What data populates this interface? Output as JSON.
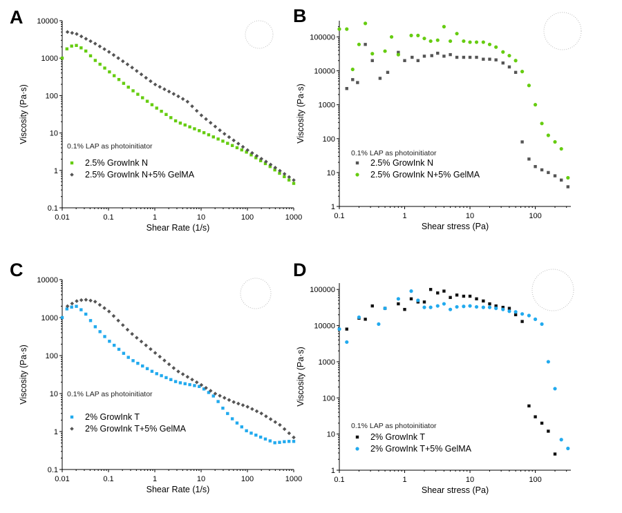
{
  "chart_data": [
    {
      "panel": "A",
      "type": "scatter",
      "xlabel": "Shear Rate (1/s)",
      "ylabel": "Viscosity (Pa·s)",
      "xscale": "log",
      "yscale": "log",
      "xlim": [
        0.01,
        1000
      ],
      "ylim": [
        0.1,
        10000
      ],
      "xticks": [
        "0.01",
        "0.1",
        "1",
        "10",
        "100",
        "1000"
      ],
      "yticks": [
        "0.1",
        "1",
        "10",
        "100",
        "1000",
        "10000"
      ],
      "annotation": "0.1% LAP as photoinitiator",
      "legend_position": "bottom-left",
      "series": [
        {
          "name": "2.5% GrowInk N",
          "color": "#66cc11",
          "marker": "square",
          "anchors": [
            [
              0.01,
              1000
            ],
            [
              0.012,
              1700
            ],
            [
              0.016,
              2100
            ],
            [
              0.02,
              2200
            ],
            [
              0.03,
              1700
            ],
            [
              0.05,
              900
            ],
            [
              0.1,
              450
            ],
            [
              0.3,
              150
            ],
            [
              1,
              50
            ],
            [
              3,
              20
            ],
            [
              10,
              11
            ],
            [
              30,
              6
            ],
            [
              100,
              3
            ],
            [
              300,
              1.3
            ],
            [
              1000,
              0.45
            ]
          ]
        },
        {
          "name": "2.5% GrowInk N+5% GelMA",
          "color": "#555555",
          "marker": "diamond",
          "anchors": [
            [
              0.013,
              5000
            ],
            [
              0.02,
              4500
            ],
            [
              0.05,
              2500
            ],
            [
              0.1,
              1500
            ],
            [
              0.3,
              600
            ],
            [
              1,
              200
            ],
            [
              3,
              100
            ],
            [
              5,
              70
            ],
            [
              10,
              30
            ],
            [
              30,
              10
            ],
            [
              100,
              3.5
            ],
            [
              300,
              1.5
            ],
            [
              1000,
              0.55
            ]
          ]
        }
      ]
    },
    {
      "panel": "B",
      "type": "scatter",
      "xlabel": "Shear stress (Pa)",
      "ylabel": "Viscosity (Pa·s)",
      "xscale": "log",
      "yscale": "log",
      "xlim": [
        0.1,
        350
      ],
      "ylim": [
        1,
        300000
      ],
      "xticks": [
        "0.1",
        "1",
        "10",
        "100"
      ],
      "yticks": [
        "1",
        "10",
        "100",
        "1000",
        "10000",
        "100000"
      ],
      "annotation": "0.1% LAP as photoinitiator",
      "legend_position": "bottom-left",
      "series": [
        {
          "name": "2.5% GrowInk N",
          "color": "#555555",
          "marker": "square",
          "points": [
            [
              0.13,
              3000
            ],
            [
              0.16,
              5500
            ],
            [
              0.19,
              4500
            ],
            [
              0.25,
              60000
            ],
            [
              0.32,
              20000
            ],
            [
              0.42,
              6000
            ],
            [
              0.55,
              9000
            ],
            [
              0.8,
              35000
            ],
            [
              1.0,
              20000
            ],
            [
              1.3,
              25000
            ],
            [
              1.6,
              20000
            ],
            [
              2,
              27000
            ],
            [
              2.6,
              28000
            ],
            [
              3.2,
              33000
            ],
            [
              4,
              27000
            ],
            [
              5,
              30000
            ],
            [
              6.3,
              25000
            ],
            [
              8,
              25000
            ],
            [
              10,
              25000
            ],
            [
              12.6,
              25000
            ],
            [
              16,
              22000
            ],
            [
              20,
              22000
            ],
            [
              25,
              21000
            ],
            [
              32,
              17000
            ],
            [
              40,
              13000
            ],
            [
              50,
              9000
            ],
            [
              63,
              80
            ],
            [
              80,
              25
            ],
            [
              100,
              15
            ],
            [
              126,
              12
            ],
            [
              158,
              10
            ],
            [
              200,
              8
            ],
            [
              250,
              6
            ],
            [
              316,
              3.8
            ]
          ]
        },
        {
          "name": "2.5% GrowInk N+5% GelMA",
          "color": "#66cc11",
          "marker": "circle",
          "points": [
            [
              0.1,
              170000
            ],
            [
              0.13,
              170000
            ],
            [
              0.16,
              11000
            ],
            [
              0.2,
              60000
            ],
            [
              0.25,
              250000
            ],
            [
              0.32,
              32000
            ],
            [
              0.5,
              38000
            ],
            [
              0.63,
              100000
            ],
            [
              0.8,
              30000
            ],
            [
              1.26,
              110000
            ],
            [
              1.6,
              110000
            ],
            [
              2,
              90000
            ],
            [
              2.5,
              75000
            ],
            [
              3.2,
              80000
            ],
            [
              4,
              200000
            ],
            [
              5,
              75000
            ],
            [
              6.3,
              125000
            ],
            [
              8,
              75000
            ],
            [
              10,
              70000
            ],
            [
              12.6,
              70000
            ],
            [
              16,
              70000
            ],
            [
              20,
              60000
            ],
            [
              25,
              50000
            ],
            [
              32,
              36000
            ],
            [
              40,
              28000
            ],
            [
              50,
              20000
            ],
            [
              63,
              9500
            ],
            [
              80,
              3700
            ],
            [
              100,
              1000
            ],
            [
              126,
              280
            ],
            [
              158,
              125
            ],
            [
              200,
              80
            ],
            [
              250,
              50
            ],
            [
              316,
              7
            ]
          ]
        }
      ]
    },
    {
      "panel": "C",
      "type": "scatter",
      "xlabel": "Shear Rate (1/s)",
      "ylabel": "Viscosity (Pa·s)",
      "xscale": "log",
      "yscale": "log",
      "xlim": [
        0.01,
        1000
      ],
      "ylim": [
        0.1,
        10000
      ],
      "xticks": [
        "0.01",
        "0.1",
        "1",
        "10",
        "100",
        "1000"
      ],
      "yticks": [
        "0.1",
        "1",
        "10",
        "100",
        "1000",
        "10000"
      ],
      "annotation": "0.1% LAP as photoinitiator",
      "legend_position": "bottom-left",
      "series": [
        {
          "name": "2% GrowInk T",
          "color": "#22aaee",
          "marker": "square",
          "anchors": [
            [
              0.01,
              1000
            ],
            [
              0.013,
              1800
            ],
            [
              0.02,
              2000
            ],
            [
              0.03,
              1400
            ],
            [
              0.05,
              600
            ],
            [
              0.1,
              250
            ],
            [
              0.3,
              80
            ],
            [
              1,
              35
            ],
            [
              3,
              20
            ],
            [
              10,
              15
            ],
            [
              20,
              8
            ],
            [
              30,
              4
            ],
            [
              50,
              2
            ],
            [
              100,
              1
            ],
            [
              200,
              0.7
            ],
            [
              400,
              0.5
            ],
            [
              700,
              0.55
            ],
            [
              1000,
              0.55
            ]
          ]
        },
        {
          "name": "2% GrowInk T+5% GelMA",
          "color": "#555555",
          "marker": "diamond",
          "anchors": [
            [
              0.013,
              2000
            ],
            [
              0.02,
              2700
            ],
            [
              0.03,
              3000
            ],
            [
              0.05,
              2700
            ],
            [
              0.1,
              1500
            ],
            [
              0.3,
              400
            ],
            [
              1,
              120
            ],
            [
              3,
              40
            ],
            [
              10,
              17
            ],
            [
              20,
              10
            ],
            [
              50,
              6
            ],
            [
              100,
              4.5
            ],
            [
              200,
              3
            ],
            [
              500,
              1.5
            ],
            [
              1000,
              0.7
            ]
          ]
        }
      ]
    },
    {
      "panel": "D",
      "type": "scatter",
      "xlabel": "Shear stress (Pa)",
      "ylabel": "Viscosity (Pa·s)",
      "xscale": "log",
      "yscale": "log",
      "xlim": [
        0.1,
        350
      ],
      "ylim": [
        1,
        150000
      ],
      "xticks": [
        "0.1",
        "1",
        "10",
        "100"
      ],
      "yticks": [
        "1",
        "10",
        "100",
        "1000",
        "10000",
        "100000"
      ],
      "annotation": "0.1% LAP as photoinitiator",
      "legend_position": "bottom-left",
      "series": [
        {
          "name": "2% GrowInk T",
          "color": "#111111",
          "marker": "square",
          "points": [
            [
              0.13,
              8000
            ],
            [
              0.2,
              16000
            ],
            [
              0.25,
              15000
            ],
            [
              0.32,
              35000
            ],
            [
              0.5,
              30000
            ],
            [
              0.8,
              40000
            ],
            [
              1.0,
              28000
            ],
            [
              1.26,
              55000
            ],
            [
              1.6,
              45000
            ],
            [
              2,
              45000
            ],
            [
              2.5,
              100000
            ],
            [
              3.2,
              80000
            ],
            [
              4,
              90000
            ],
            [
              5,
              60000
            ],
            [
              6.3,
              70000
            ],
            [
              8,
              65000
            ],
            [
              10,
              65000
            ],
            [
              12.6,
              55000
            ],
            [
              16,
              48000
            ],
            [
              20,
              40000
            ],
            [
              25,
              35000
            ],
            [
              32,
              32000
            ],
            [
              40,
              30000
            ],
            [
              50,
              20000
            ],
            [
              63,
              13000
            ],
            [
              80,
              60
            ],
            [
              100,
              30
            ],
            [
              126,
              20
            ],
            [
              158,
              12
            ],
            [
              200,
              2.8
            ]
          ]
        },
        {
          "name": "2% GrowInk T+5% GelMA",
          "color": "#22aaee",
          "marker": "circle",
          "points": [
            [
              0.1,
              8000
            ],
            [
              0.13,
              3500
            ],
            [
              0.2,
              17000
            ],
            [
              0.4,
              11000
            ],
            [
              0.5,
              30000
            ],
            [
              0.8,
              55000
            ],
            [
              1.26,
              90000
            ],
            [
              1.6,
              50000
            ],
            [
              2,
              32000
            ],
            [
              2.5,
              32000
            ],
            [
              3.2,
              35000
            ],
            [
              4,
              40000
            ],
            [
              5,
              28000
            ],
            [
              6.3,
              33000
            ],
            [
              8,
              34000
            ],
            [
              10,
              35000
            ],
            [
              12.6,
              33000
            ],
            [
              16,
              32000
            ],
            [
              20,
              32000
            ],
            [
              25,
              30000
            ],
            [
              32,
              28000
            ],
            [
              40,
              25000
            ],
            [
              50,
              24000
            ],
            [
              63,
              21000
            ],
            [
              80,
              19000
            ],
            [
              100,
              15000
            ],
            [
              126,
              11000
            ],
            [
              158,
              1000
            ],
            [
              200,
              180
            ],
            [
              250,
              7
            ],
            [
              316,
              4
            ]
          ]
        }
      ]
    }
  ],
  "panel_labels": [
    "A",
    "B",
    "C",
    "D"
  ]
}
